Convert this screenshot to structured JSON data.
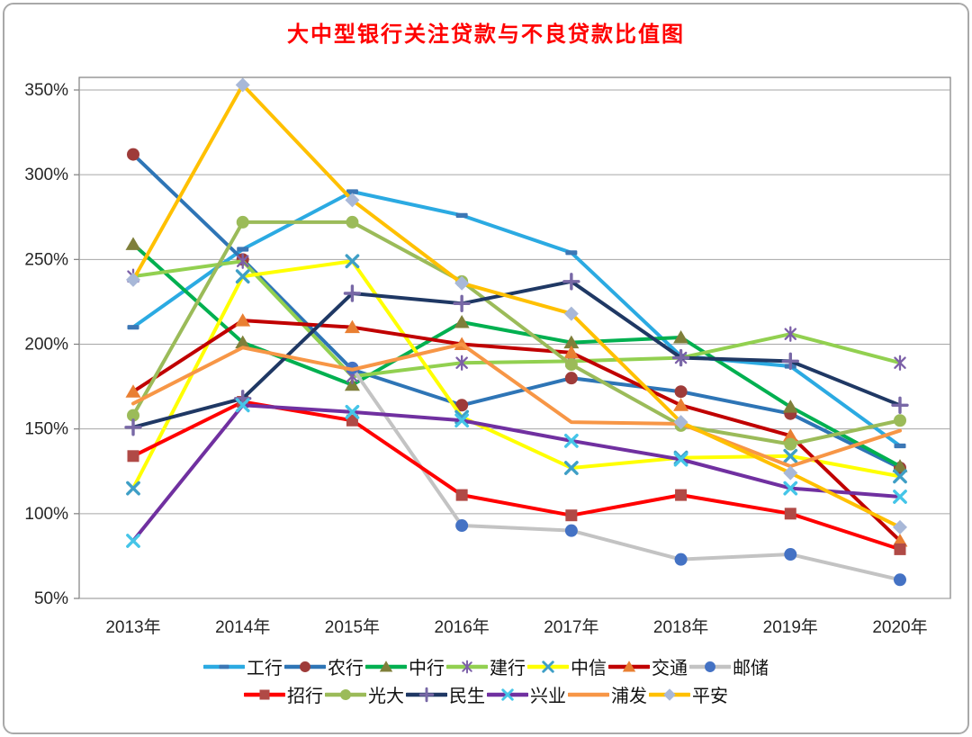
{
  "title": "大中型银行关注贷款与不良贷款比值图",
  "title_color": "#FF0000",
  "chart_data": {
    "type": "line",
    "title": "大中型银行关注贷款与不良贷款比值图",
    "categories": [
      "2013年",
      "2014年",
      "2015年",
      "2016年",
      "2017年",
      "2018年",
      "2019年",
      "2020年"
    ],
    "unit": "%",
    "ylim": [
      50,
      363
    ],
    "grid": true,
    "gridline_color": "#A6A6A6",
    "legend_position": "bottom",
    "y_ticks": [
      {
        "value": 350,
        "label": "350%"
      },
      {
        "value": 300,
        "label": "300%"
      },
      {
        "value": 250,
        "label": "250%"
      },
      {
        "value": 200,
        "label": "200%"
      },
      {
        "value": 150,
        "label": "150%"
      },
      {
        "value": 100,
        "label": "100%"
      },
      {
        "value": 50,
        "label": "50%"
      }
    ],
    "legend_rows": [
      [
        "icbc",
        "abc",
        "boc",
        "ccb",
        "citic",
        "bocom",
        "psbc"
      ],
      [
        "cmb",
        "ceb",
        "minsheng",
        "cib",
        "spdb",
        "pingan"
      ]
    ],
    "series": [
      {
        "id": "icbc",
        "name": "工行",
        "color": "#2BAAE2",
        "marker": "dash",
        "marker_color": "#3C77B5",
        "values": [
          210,
          256,
          290,
          276,
          254,
          193,
          187,
          140
        ]
      },
      {
        "id": "abc",
        "name": "农行",
        "color": "#2E75B6",
        "marker": "circle",
        "marker_color": "#9E3B39",
        "values": [
          312,
          250,
          185,
          164,
          180,
          172,
          159,
          127
        ]
      },
      {
        "id": "boc",
        "name": "中行",
        "color": "#00B050",
        "marker": "triangle",
        "marker_color": "#7F7F3A",
        "values": [
          259,
          201,
          176,
          213,
          201,
          204,
          163,
          128
        ]
      },
      {
        "id": "ccb",
        "name": "建行",
        "color": "#92D050",
        "marker": "asterisk",
        "marker_color": "#7C60A8",
        "values": [
          240,
          249,
          181,
          189,
          190,
          192,
          206,
          189
        ]
      },
      {
        "id": "citic",
        "name": "中信",
        "color": "#FFFF00",
        "marker": "x",
        "marker_color": "#3F9FC6",
        "values": [
          115,
          240,
          249,
          157,
          127,
          133,
          134,
          122
        ]
      },
      {
        "id": "bocom",
        "name": "交通",
        "color": "#C00000",
        "marker": "triangle",
        "marker_color": "#E97F32",
        "values": [
          172,
          214,
          210,
          200,
          195,
          164,
          146,
          84
        ]
      },
      {
        "id": "psbc",
        "name": "邮储",
        "color": "#C3C3C3",
        "marker": "circle",
        "marker_color": "#4472C4",
        "values": [
          null,
          null,
          186,
          93,
          90,
          73,
          76,
          61
        ]
      },
      {
        "id": "cmb",
        "name": "招行",
        "color": "#FF0000",
        "marker": "square",
        "marker_color": "#B04A46",
        "values": [
          134,
          166,
          155,
          111,
          99,
          111,
          100,
          79
        ]
      },
      {
        "id": "ceb",
        "name": "光大",
        "color": "#9BBB59",
        "marker": "circle",
        "marker_color": "#9BBB59",
        "values": [
          158,
          272,
          272,
          237,
          188,
          152,
          141,
          155
        ]
      },
      {
        "id": "minsheng",
        "name": "民生",
        "color": "#1F3864",
        "marker": "plus",
        "marker_color": "#7868A6",
        "values": [
          151,
          168,
          230,
          224,
          237,
          192,
          190,
          164
        ]
      },
      {
        "id": "cib",
        "name": "兴业",
        "color": "#7030A0",
        "marker": "x",
        "marker_color": "#45C5E8",
        "values": [
          84,
          164,
          160,
          155,
          143,
          132,
          115,
          110
        ]
      },
      {
        "id": "spdb",
        "name": "浦发",
        "color": "#F79646",
        "marker": "none",
        "marker_color": "#F79646",
        "values": [
          165,
          198,
          185,
          200,
          154,
          153,
          128,
          149
        ]
      },
      {
        "id": "pingan",
        "name": "平安",
        "color": "#FFC000",
        "marker": "diamond",
        "marker_color": "#A8B8D8",
        "values": [
          238,
          353,
          285,
          236,
          218,
          154,
          124,
          92
        ]
      }
    ]
  }
}
